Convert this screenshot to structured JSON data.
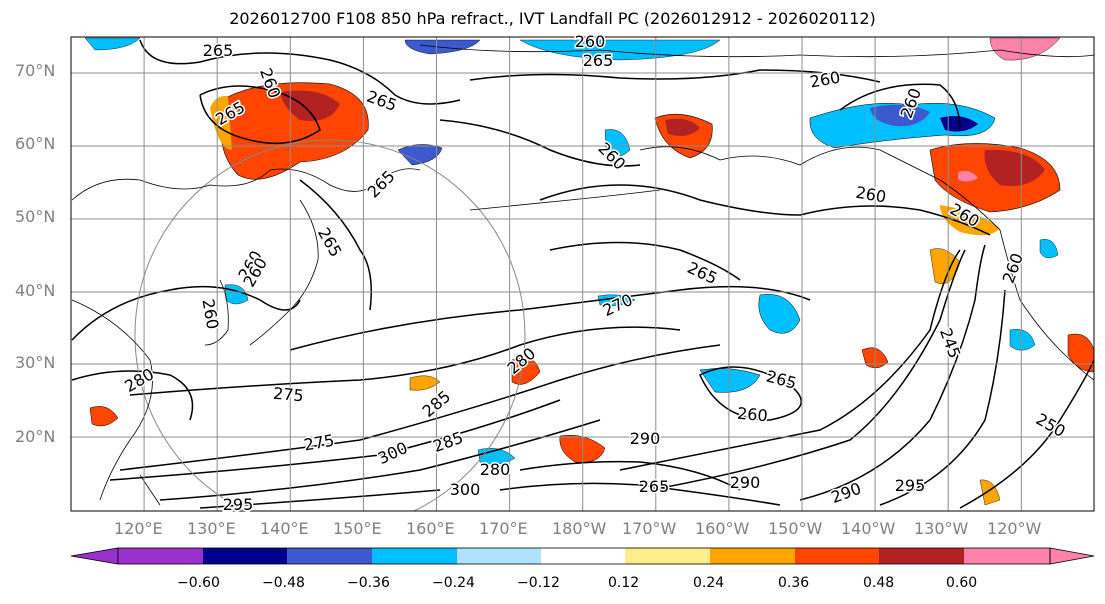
{
  "title": "2026012700 F108 850 hPa refract., IVT Landfall PC (2026012912 - 2026020112)",
  "lat_labels": [
    "70°N",
    "60°N",
    "50°N",
    "40°N",
    "30°N",
    "20°N"
  ],
  "lon_labels": [
    "120°E",
    "130°E",
    "140°E",
    "150°E",
    "160°E",
    "170°E",
    "180°W",
    "170°W",
    "160°W",
    "150°W",
    "140°W",
    "130°W",
    "120°W"
  ],
  "colorbar": {
    "tick_labels": [
      "−0.60",
      "−0.48",
      "−0.36",
      "−0.24",
      "−0.12",
      "0.12",
      "0.24",
      "0.36",
      "0.48",
      "0.60"
    ],
    "colors": [
      "#9932cc",
      "#00008b",
      "#3a5acd",
      "#00bfff",
      "#b0e2ff",
      "#ffffff",
      "#ffec8b",
      "#ffa500",
      "#ff4500",
      "#b22222",
      "#ff82ab"
    ]
  },
  "contour_labels": [
    "265",
    "260",
    "265",
    "265",
    "260",
    "265",
    "260",
    "260",
    "260",
    "265",
    "260",
    "260",
    "260",
    "265",
    "270",
    "265",
    "260",
    "265",
    "280",
    "275",
    "280",
    "275",
    "285",
    "300",
    "285",
    "290",
    "280",
    "300",
    "265",
    "290",
    "290",
    "295",
    "295",
    "245",
    "250",
    "260",
    "260",
    "260"
  ]
}
